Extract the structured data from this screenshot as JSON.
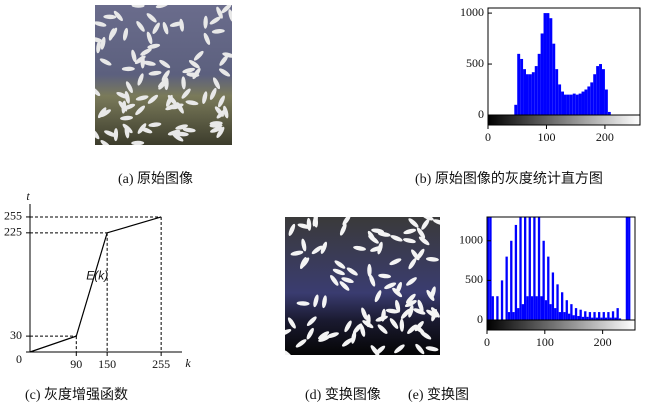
{
  "images": [
    {
      "caption": "(a) 原始图像"
    },
    {
      "caption": "(d) 变换图像"
    }
  ],
  "chart_data": [
    {
      "type": "histogram",
      "caption": "(b) 原始图像的灰度统计直方图",
      "color": "#0000ff",
      "bins": [
        0,
        5,
        10,
        15,
        20,
        25,
        30,
        35,
        40,
        45,
        50,
        55,
        60,
        65,
        70,
        75,
        80,
        85,
        90,
        95,
        100,
        105,
        110,
        115,
        120,
        125,
        130,
        135,
        140,
        145,
        150,
        155,
        160,
        165,
        170,
        175,
        180,
        185,
        190,
        195,
        200,
        205,
        210,
        215,
        220,
        225,
        230,
        235,
        240,
        245,
        250,
        255,
        260
      ],
      "values": [
        0,
        0,
        0,
        0,
        0,
        0,
        0,
        0,
        0,
        100,
        600,
        550,
        450,
        400,
        400,
        420,
        480,
        600,
        800,
        1000,
        1000,
        950,
        700,
        450,
        300,
        230,
        200,
        200,
        200,
        210,
        200,
        210,
        230,
        250,
        280,
        320,
        400,
        480,
        500,
        450,
        250,
        30,
        0,
        0,
        0,
        0,
        0,
        0,
        0,
        0,
        0,
        0
      ],
      "xlim": [
        0,
        260
      ],
      "xticks": [
        0,
        100,
        200
      ],
      "ylim": [
        0,
        1050
      ],
      "yticks": [
        0,
        500,
        1000
      ]
    },
    {
      "type": "line",
      "caption": "(c) 灰度增强函数",
      "xlabel": "k",
      "ylabel": "t",
      "annotation": "E(k)",
      "x": [
        0,
        90,
        150,
        255
      ],
      "values": [
        0,
        30,
        225,
        255
      ],
      "xlim": [
        0,
        280
      ],
      "xticks": [
        90,
        150,
        255
      ],
      "ylim": [
        0,
        270
      ],
      "yticks": [
        0,
        30,
        225,
        255
      ]
    },
    {
      "type": "histogram",
      "caption": "(e) 变换图",
      "color": "#0000ff",
      "bins": [
        0,
        4,
        8,
        12,
        16,
        20,
        24,
        28,
        32,
        36,
        40,
        44,
        48,
        52,
        56,
        60,
        64,
        68,
        72,
        76,
        80,
        84,
        88,
        92,
        96,
        100,
        104,
        108,
        112,
        116,
        120,
        124,
        128,
        132,
        136,
        140,
        144,
        148,
        152,
        156,
        160,
        164,
        168,
        172,
        176,
        180,
        184,
        188,
        192,
        196,
        200,
        204,
        208,
        212,
        216,
        220,
        224,
        228,
        232,
        236,
        240,
        244,
        248,
        252,
        256
      ],
      "values": [
        1300,
        1300,
        300,
        0,
        300,
        0,
        500,
        0,
        800,
        100,
        1000,
        100,
        1200,
        150,
        1300,
        200,
        1300,
        300,
        1300,
        300,
        1300,
        300,
        1300,
        300,
        1000,
        250,
        800,
        200,
        600,
        150,
        450,
        100,
        350,
        100,
        250,
        80,
        200,
        60,
        150,
        50,
        130,
        40,
        110,
        40,
        100,
        30,
        100,
        30,
        100,
        30,
        100,
        30,
        100,
        30,
        110,
        30,
        150,
        20,
        0,
        0,
        1300,
        1300,
        0,
        0
      ],
      "xlim": [
        0,
        256
      ],
      "xticks": [
        0,
        100,
        200
      ],
      "ylim": [
        0,
        1300
      ],
      "yticks": [
        0,
        500,
        1000
      ]
    }
  ]
}
